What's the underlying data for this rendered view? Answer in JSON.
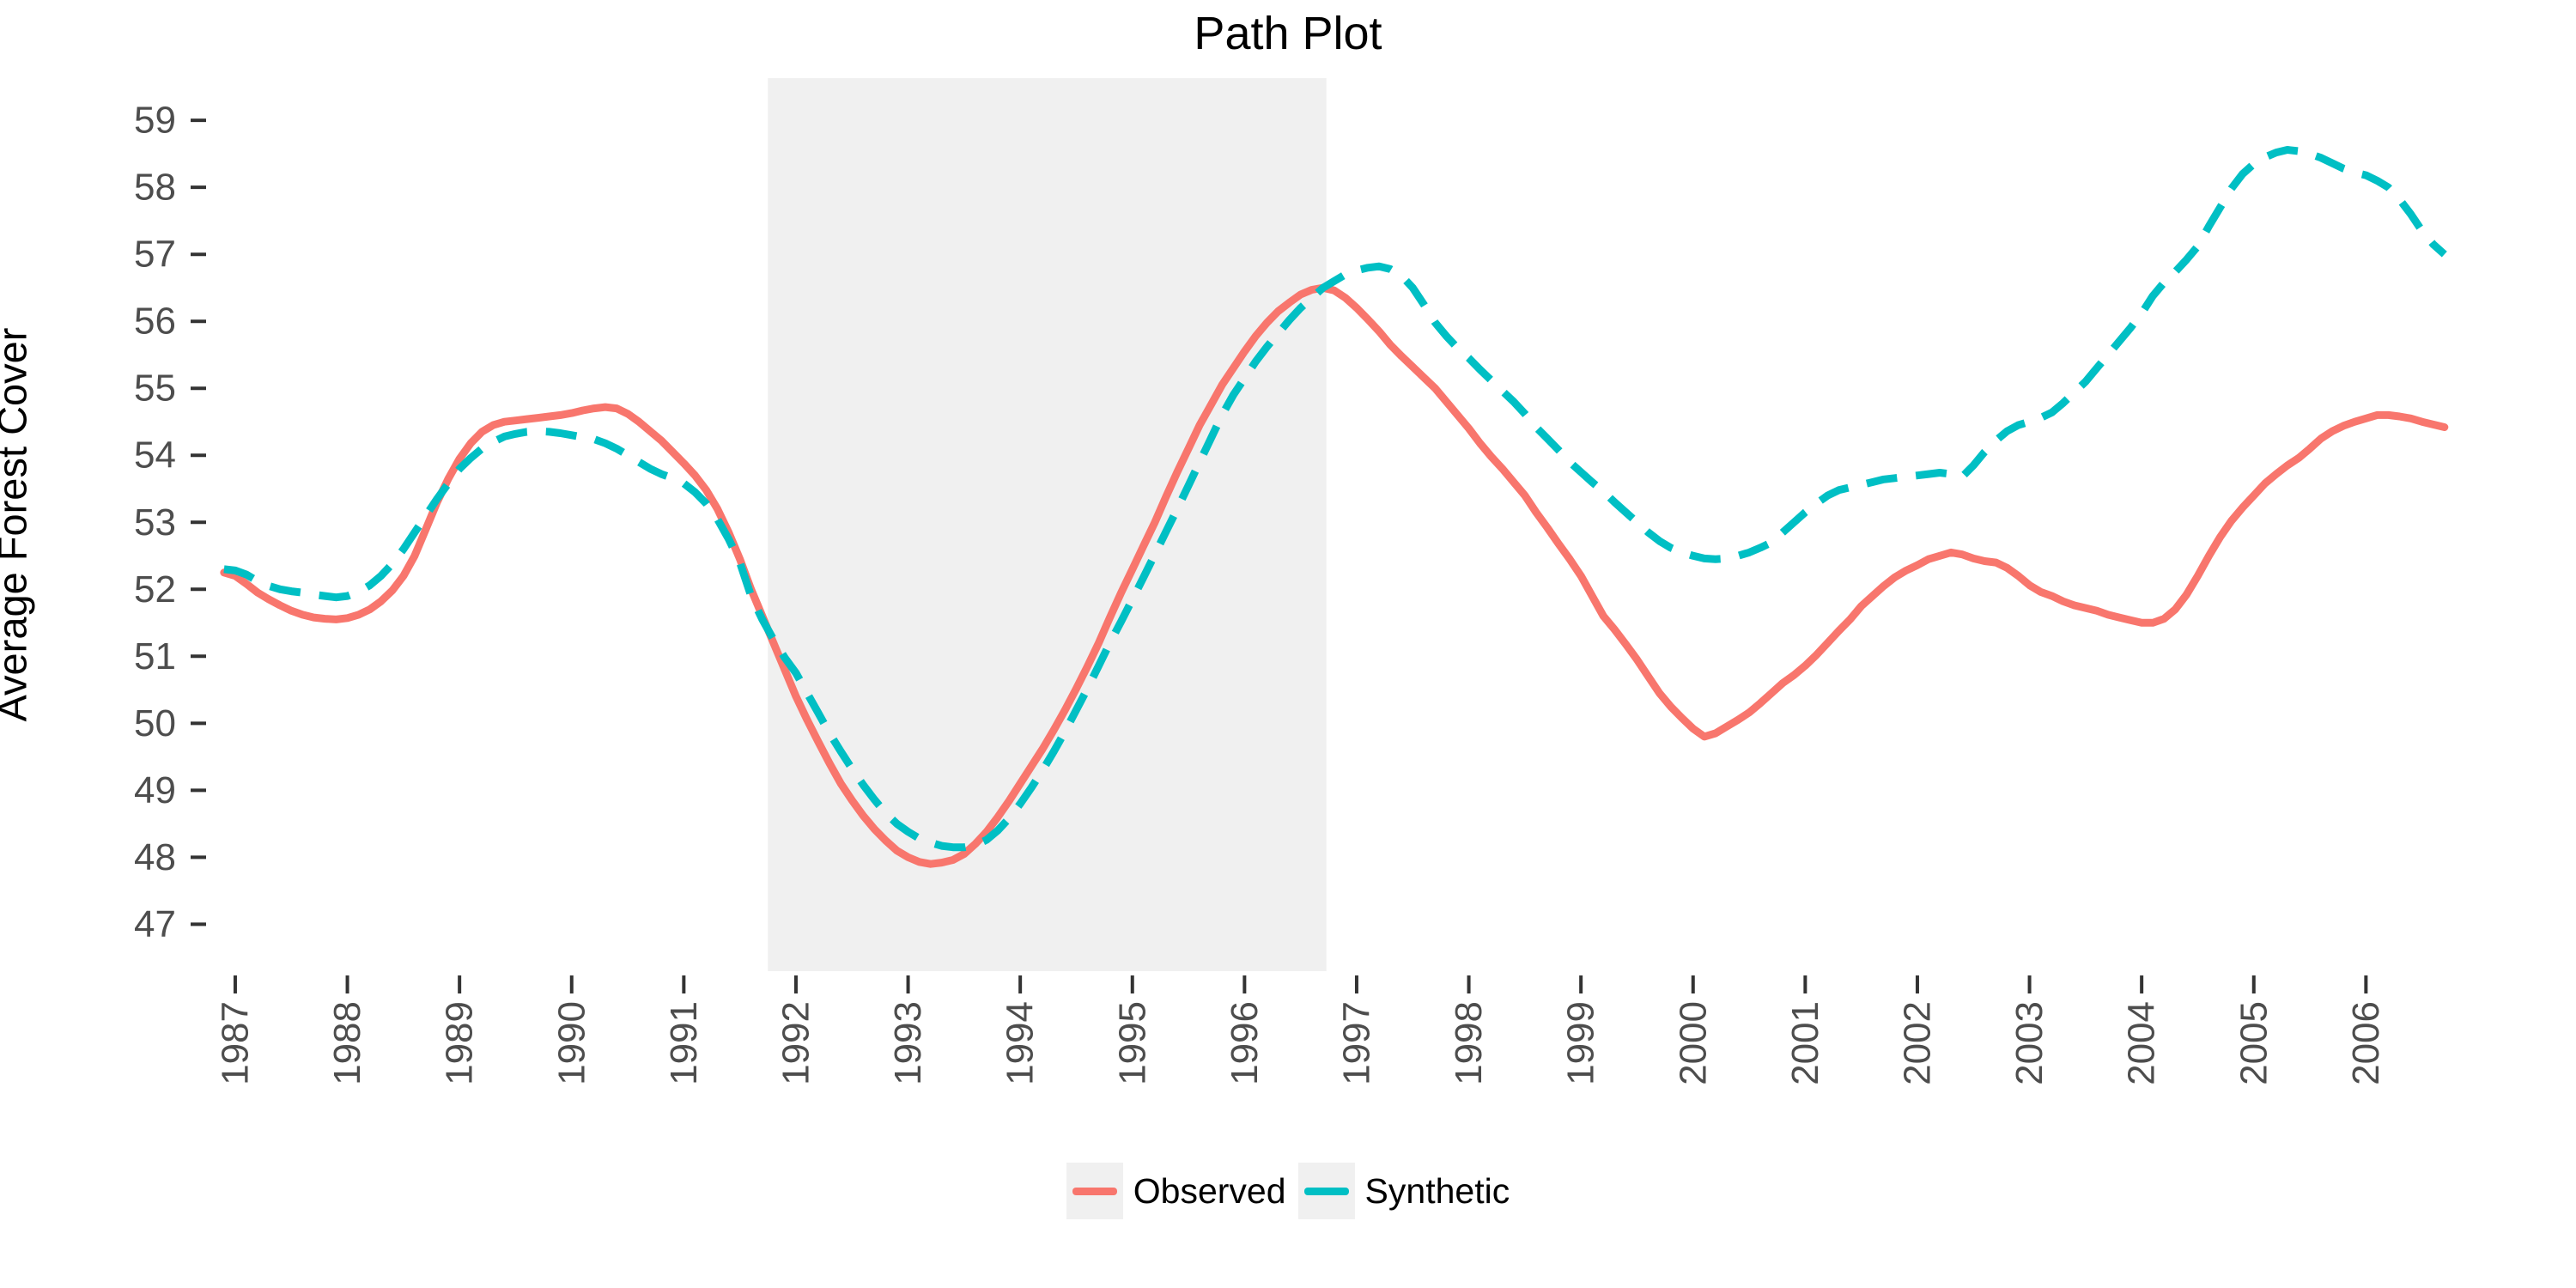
{
  "title": "Path Plot",
  "y_axis": {
    "label": "Average Forest Cover"
  },
  "legend": {
    "items": [
      {
        "label": "Observed",
        "color": "#F8766D",
        "dashed": false
      },
      {
        "label": "Synthetic",
        "color": "#00BFC4",
        "dashed": true
      }
    ]
  },
  "colors": {
    "observed": "#F8766D",
    "synthetic": "#00BFC4",
    "shaded_region": "#F0F0F0",
    "tick": "#333333",
    "tick_text": "#4D4D4D",
    "text": "#000000"
  },
  "chart_data": {
    "type": "line",
    "title": "Path Plot",
    "xlabel": "",
    "ylabel": "Average Forest Cover",
    "x_ticks": [
      1987,
      1988,
      1989,
      1990,
      1991,
      1992,
      1993,
      1994,
      1995,
      1996,
      1997,
      1998,
      1999,
      2000,
      2001,
      2002,
      2003,
      2004,
      2005,
      2006
    ],
    "y_ticks": [
      47,
      48,
      49,
      50,
      51,
      52,
      53,
      54,
      55,
      56,
      57,
      58,
      59
    ],
    "xlim": [
      1986.74,
      2007.72
    ],
    "ylim": [
      46.3,
      59.63
    ],
    "grid": false,
    "legend_position": "bottom",
    "shaded_x_range": [
      1991.75,
      1996.73
    ],
    "x_start": 1986.9,
    "x_step": 0.1,
    "series": [
      {
        "name": "Observed",
        "color": "#F8766D",
        "style": "solid",
        "values": [
          52.25,
          52.2,
          52.08,
          51.95,
          51.85,
          51.76,
          51.68,
          51.62,
          51.58,
          51.56,
          51.55,
          51.57,
          51.62,
          51.7,
          51.82,
          51.98,
          52.2,
          52.5,
          52.9,
          53.3,
          53.65,
          53.95,
          54.18,
          54.35,
          54.45,
          54.5,
          54.52,
          54.54,
          54.56,
          54.58,
          54.6,
          54.63,
          54.67,
          54.7,
          54.72,
          54.7,
          54.62,
          54.5,
          54.36,
          54.22,
          54.05,
          53.88,
          53.7,
          53.48,
          53.2,
          52.85,
          52.45,
          52.0,
          51.6,
          51.2,
          50.8,
          50.4,
          50.05,
          49.72,
          49.4,
          49.1,
          48.85,
          48.62,
          48.42,
          48.25,
          48.1,
          48.0,
          47.93,
          47.9,
          47.92,
          47.96,
          48.05,
          48.2,
          48.38,
          48.6,
          48.84,
          49.1,
          49.36,
          49.62,
          49.9,
          50.2,
          50.52,
          50.85,
          51.2,
          51.58,
          51.95,
          52.3,
          52.65,
          53.0,
          53.38,
          53.75,
          54.1,
          54.45,
          54.75,
          55.05,
          55.3,
          55.55,
          55.78,
          55.98,
          56.15,
          56.28,
          56.4,
          56.47,
          56.5,
          56.46,
          56.35,
          56.2,
          56.03,
          55.85,
          55.65,
          55.48,
          55.32,
          55.16,
          55.0,
          54.8,
          54.6,
          54.4,
          54.18,
          53.98,
          53.8,
          53.6,
          53.4,
          53.15,
          52.92,
          52.68,
          52.45,
          52.2,
          51.9,
          51.6,
          51.4,
          51.18,
          50.95,
          50.7,
          50.45,
          50.25,
          50.08,
          49.92,
          49.8,
          49.85,
          49.95,
          50.05,
          50.16,
          50.3,
          50.45,
          50.6,
          50.72,
          50.86,
          51.02,
          51.2,
          51.38,
          51.55,
          51.75,
          51.9,
          52.05,
          52.18,
          52.28,
          52.36,
          52.45,
          52.5,
          52.55,
          52.52,
          52.46,
          52.42,
          52.4,
          52.32,
          52.2,
          52.06,
          51.96,
          51.9,
          51.82,
          51.76,
          51.72,
          51.68,
          51.62,
          51.58,
          51.54,
          51.5,
          51.5,
          51.56,
          51.7,
          51.92,
          52.2,
          52.5,
          52.78,
          53.02,
          53.22,
          53.4,
          53.58,
          53.72,
          53.85,
          53.96,
          54.1,
          54.25,
          54.36,
          54.44,
          54.5,
          54.55,
          54.6,
          54.6,
          54.58,
          54.55,
          54.5,
          54.46,
          54.42
        ]
      },
      {
        "name": "Synthetic",
        "color": "#00BFC4",
        "style": "dashed",
        "values": [
          52.3,
          52.28,
          52.22,
          52.12,
          52.05,
          52.0,
          51.97,
          51.95,
          51.92,
          51.9,
          51.88,
          51.9,
          51.96,
          52.06,
          52.2,
          52.38,
          52.6,
          52.85,
          53.1,
          53.35,
          53.58,
          53.8,
          53.96,
          54.1,
          54.2,
          54.28,
          54.32,
          54.35,
          54.36,
          54.35,
          54.33,
          54.3,
          54.27,
          54.24,
          54.18,
          54.1,
          54.0,
          53.9,
          53.8,
          53.72,
          53.66,
          53.58,
          53.45,
          53.28,
          53.05,
          52.75,
          52.4,
          51.9,
          51.55,
          51.25,
          50.98,
          50.75,
          50.45,
          50.15,
          49.85,
          49.58,
          49.32,
          49.08,
          48.86,
          48.66,
          48.5,
          48.38,
          48.28,
          48.22,
          48.17,
          48.15,
          48.15,
          48.18,
          48.26,
          48.4,
          48.58,
          48.8,
          49.04,
          49.3,
          49.58,
          49.88,
          50.2,
          50.52,
          50.86,
          51.2,
          51.52,
          51.85,
          52.18,
          52.52,
          52.86,
          53.2,
          53.55,
          53.9,
          54.25,
          54.6,
          54.9,
          55.15,
          55.4,
          55.62,
          55.82,
          56.02,
          56.2,
          56.35,
          56.5,
          56.6,
          56.7,
          56.76,
          56.8,
          56.82,
          56.78,
          56.68,
          56.5,
          56.25,
          55.98,
          55.78,
          55.6,
          55.45,
          55.28,
          55.12,
          54.96,
          54.8,
          54.62,
          54.42,
          54.25,
          54.08,
          53.9,
          53.75,
          53.6,
          53.46,
          53.3,
          53.15,
          53.0,
          52.85,
          52.72,
          52.62,
          52.55,
          52.5,
          52.46,
          52.45,
          52.46,
          52.5,
          52.55,
          52.62,
          52.7,
          52.85,
          53.0,
          53.15,
          53.28,
          53.4,
          53.48,
          53.52,
          53.56,
          53.6,
          53.64,
          53.66,
          53.68,
          53.7,
          53.72,
          53.74,
          53.72,
          53.68,
          53.85,
          54.05,
          54.22,
          54.36,
          54.45,
          54.5,
          54.56,
          54.64,
          54.78,
          54.94,
          55.1,
          55.3,
          55.5,
          55.7,
          55.9,
          56.12,
          56.38,
          56.58,
          56.74,
          56.92,
          57.12,
          57.42,
          57.7,
          57.98,
          58.2,
          58.35,
          58.45,
          58.52,
          58.56,
          58.54,
          58.5,
          58.44,
          58.36,
          58.28,
          58.22,
          58.18,
          58.1,
          58.0,
          57.82,
          57.6,
          57.35,
          57.15,
          57.0
        ]
      }
    ]
  }
}
